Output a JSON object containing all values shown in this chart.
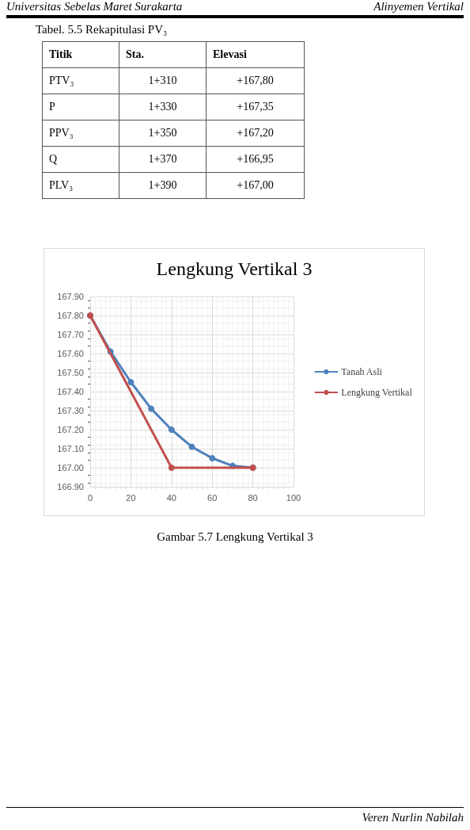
{
  "chart_data": [
    {
      "type": "other",
      "title": "Tabel. 5.5 Rekapitulasi PV₃",
      "annotations": [
        "Universitas Sebelas Maret Surakarta",
        "Alinyemen Vertikal"
      ],
      "categories": [
        "Titik",
        "Sta.",
        "Elevasi"
      ],
      "y_categories": [
        "PTV₃",
        "P",
        "PPV₃",
        "Q",
        "PLV₃"
      ],
      "cell_labels": [
        [
          "1+310",
          "+167,80"
        ],
        [
          "1+330",
          "+167,35"
        ],
        [
          "1+350",
          "+167,20"
        ],
        [
          "1+370",
          "+166,95"
        ],
        [
          "1+390",
          "+167,00"
        ]
      ]
    },
    {
      "type": "line",
      "title": "Lengkung Vertikal 3",
      "annotations": [
        "Gambar 5.7 Lengkung Vertikal 3",
        "Veren Nurlin Nabilah"
      ],
      "series": [
        {
          "name": "Tanah Asli",
          "color": "#4f81bd",
          "x": [
            0,
            10,
            20,
            30,
            40,
            50,
            60,
            70,
            80
          ],
          "values": [
            167.8,
            167.61,
            167.45,
            167.31,
            167.2,
            167.11,
            167.05,
            167.01,
            167.0
          ]
        },
        {
          "name": "Lengkung Vertikal",
          "color": "#c0504d",
          "x": [
            0,
            40,
            80
          ],
          "values": [
            167.8,
            167.0,
            167.0
          ]
        }
      ],
      "xlim": [
        0,
        100
      ],
      "xticks": [
        0,
        20,
        40,
        60,
        80,
        100
      ],
      "ylim": [
        166.9,
        167.9
      ],
      "yticks": [
        {
          "value": 166.9,
          "label": "166.90"
        },
        {
          "value": 167.0,
          "label": "167.00"
        },
        {
          "value": 167.1,
          "label": "167.10"
        },
        {
          "value": 167.2,
          "label": "167.20"
        },
        {
          "value": 167.3,
          "label": "167.30"
        },
        {
          "value": 167.4,
          "label": "167.40"
        },
        {
          "value": 167.5,
          "label": "167.50"
        },
        {
          "value": 167.6,
          "label": "167.60"
        },
        {
          "value": 167.7,
          "label": "167.70"
        },
        {
          "value": 167.8,
          "label": "167.80"
        },
        {
          "value": 167.9,
          "label": "167.90"
        }
      ],
      "grid": true,
      "legend": "right",
      "marker": "circle",
      "line_style": "solid"
    }
  ]
}
